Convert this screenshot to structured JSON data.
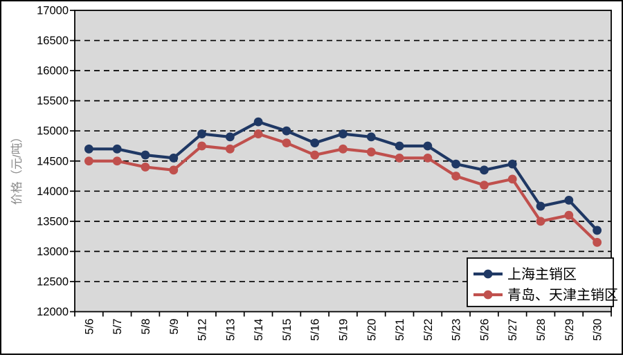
{
  "chart_data": {
    "type": "line",
    "title": "",
    "ylabel": "价格（元/吨）",
    "xlabel": "",
    "ylim": [
      12000,
      17000
    ],
    "ytick_step": 500,
    "yticks": [
      "17000",
      "16500",
      "16000",
      "15500",
      "15000",
      "14500",
      "14000",
      "13500",
      "13000",
      "12500",
      "12000"
    ],
    "categories": [
      "5/6",
      "5/7",
      "5/8",
      "5/9",
      "5/12",
      "5/13",
      "5/14",
      "5/15",
      "5/16",
      "5/19",
      "5/20",
      "5/21",
      "5/22",
      "5/23",
      "5/26",
      "5/27",
      "5/28",
      "5/29",
      "5/30"
    ],
    "series": [
      {
        "name": "上海主销区",
        "color": "#1F3864",
        "values": [
          14700,
          14700,
          14600,
          14550,
          14950,
          14900,
          15150,
          15000,
          14800,
          14950,
          14900,
          14750,
          14750,
          14450,
          14350,
          14450,
          13750,
          13850,
          13350
        ]
      },
      {
        "name": "青岛、天津主销区",
        "color": "#C0504D",
        "values": [
          14500,
          14500,
          14400,
          14350,
          14750,
          14700,
          14950,
          14800,
          14600,
          14700,
          14650,
          14550,
          14550,
          14250,
          14100,
          14200,
          13500,
          13600,
          13150
        ]
      }
    ],
    "grid": "horizontal-dashed",
    "legend_position": "bottom-right",
    "colors": {
      "plot_background": "#D9D9D9",
      "gridline": "#000000",
      "axis": "#000000",
      "tick_label": "#000000",
      "ylabel_text": "#8C8C8C",
      "legend_background": "#FFFFFF",
      "legend_border": "#000000",
      "frame_border": "#000000"
    }
  }
}
